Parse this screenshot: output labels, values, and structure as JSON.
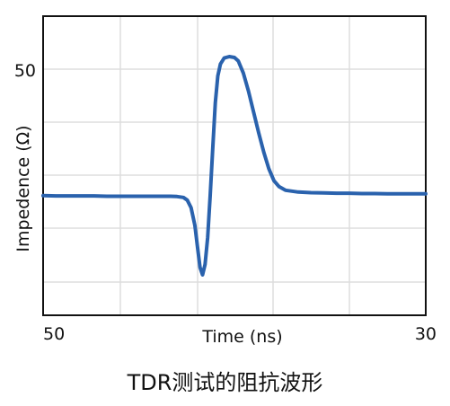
{
  "chart_data": {
    "type": "line",
    "caption": "TDR测试的阻抗波形",
    "xlabel": "Time (ns)",
    "ylabel": "Impedence (Ω)",
    "x_tick_labels": [
      "50",
      "30"
    ],
    "y_tick_labels": [
      "50"
    ],
    "grid": true,
    "colors": {
      "line": "#2a62ad",
      "grid": "#dddddd",
      "frame": "#111111"
    },
    "series": [
      {
        "values_note_excluded": true,
        "points": [
          [
            0,
            0.4
          ],
          [
            1,
            0.399
          ],
          [
            2,
            0.399
          ],
          [
            3,
            0.399
          ],
          [
            4,
            0.399
          ],
          [
            5,
            0.398
          ],
          [
            6,
            0.398
          ],
          [
            7,
            0.398
          ],
          [
            8,
            0.398
          ],
          [
            9,
            0.398
          ],
          [
            10,
            0.398
          ],
          [
            10.5,
            0.397
          ],
          [
            11,
            0.394
          ],
          [
            11.3,
            0.385
          ],
          [
            11.6,
            0.36
          ],
          [
            11.9,
            0.3
          ],
          [
            12.1,
            0.23
          ],
          [
            12.3,
            0.16
          ],
          [
            12.5,
            0.135
          ],
          [
            12.7,
            0.17
          ],
          [
            12.9,
            0.26
          ],
          [
            13.1,
            0.4
          ],
          [
            13.3,
            0.56
          ],
          [
            13.5,
            0.71
          ],
          [
            13.7,
            0.8
          ],
          [
            13.9,
            0.84
          ],
          [
            14.2,
            0.86
          ],
          [
            14.6,
            0.865
          ],
          [
            15.0,
            0.862
          ],
          [
            15.3,
            0.85
          ],
          [
            15.7,
            0.81
          ],
          [
            16.1,
            0.75
          ],
          [
            16.5,
            0.68
          ],
          [
            16.9,
            0.61
          ],
          [
            17.3,
            0.545
          ],
          [
            17.7,
            0.49
          ],
          [
            18.1,
            0.45
          ],
          [
            18.5,
            0.43
          ],
          [
            19,
            0.418
          ],
          [
            20,
            0.412
          ],
          [
            21,
            0.41
          ],
          [
            22,
            0.409
          ],
          [
            23,
            0.408
          ],
          [
            24,
            0.408
          ],
          [
            25,
            0.407
          ],
          [
            26,
            0.407
          ],
          [
            27,
            0.406
          ],
          [
            28,
            0.406
          ],
          [
            29,
            0.406
          ],
          [
            30,
            0.406
          ]
        ]
      }
    ]
  }
}
